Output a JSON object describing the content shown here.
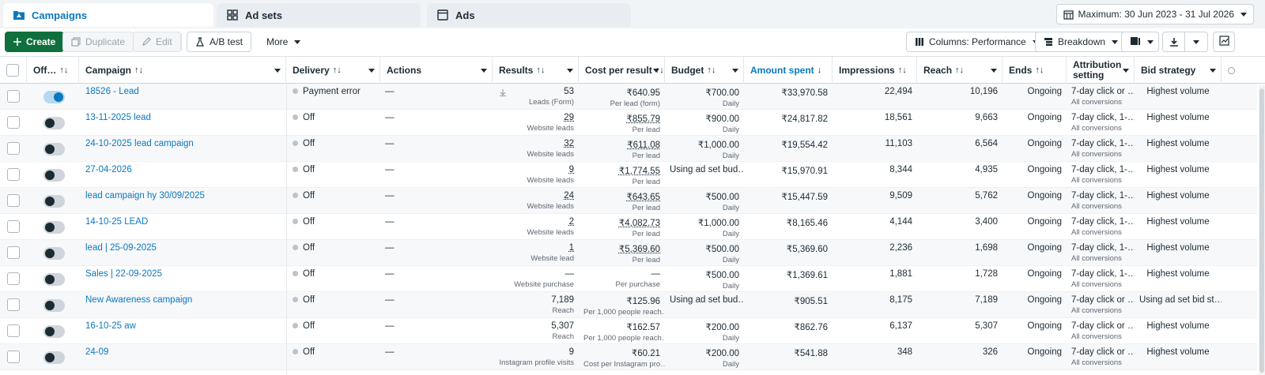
{
  "tabs": [
    {
      "label": "Campaigns",
      "icon": "folder-icon",
      "active": true
    },
    {
      "label": "Ad sets",
      "icon": "grid-icon",
      "active": false
    },
    {
      "label": "Ads",
      "icon": "ad-icon",
      "active": false
    }
  ],
  "date_range": "Maximum: 30 Jun 2023 - 31 Jul 2026",
  "toolbar": {
    "create": "Create",
    "duplicate": "Duplicate",
    "edit": "Edit",
    "ab_test": "A/B test",
    "more": "More",
    "columns": "Columns: Performance",
    "breakdown": "Breakdown"
  },
  "columns": {
    "off_on": "Off…",
    "campaign": "Campaign",
    "delivery": "Delivery",
    "actions": "Actions",
    "results": "Results",
    "cost_per_result": "Cost per result",
    "budget": "Budget",
    "amount_spent": "Amount spent",
    "impressions": "Impressions",
    "reach": "Reach",
    "ends": "Ends",
    "attribution_line1": "Attribution",
    "attribution_line2": "setting",
    "bid_strategy": "Bid strategy"
  },
  "rows": [
    {
      "on": true,
      "name": "18526 - Lead",
      "delivery": "Payment error",
      "actions": "—",
      "results": "53",
      "results_sub": "Leads (Form)",
      "cost": "₹640.95",
      "cost_sub": "Per lead (form)",
      "budget": "₹700.00",
      "budget_sub": "Daily",
      "spent": "₹33,970.58",
      "impressions": "22,494",
      "reach": "10,196",
      "ends": "Ongoing",
      "attr": "7-day click or …",
      "attr_sub": "All conversions",
      "bid": "Highest volume"
    },
    {
      "on": false,
      "name": "13-11-2025 lead",
      "delivery": "Off",
      "actions": "—",
      "results": "29",
      "results_sub": "Website leads",
      "cost": "₹855.79",
      "cost_sub": "Per lead",
      "budget": "₹900.00",
      "budget_sub": "Daily",
      "spent": "₹24,817.82",
      "impressions": "18,561",
      "reach": "9,663",
      "ends": "Ongoing",
      "attr": "7-day click, 1-…",
      "attr_sub": "All conversions",
      "bid": "Highest volume"
    },
    {
      "on": false,
      "name": "24-10-2025 lead campaign",
      "delivery": "Off",
      "actions": "—",
      "results": "32",
      "results_sub": "Website leads",
      "cost": "₹611.08",
      "cost_sub": "Per lead",
      "budget": "₹1,000.00",
      "budget_sub": "Daily",
      "spent": "₹19,554.42",
      "impressions": "11,103",
      "reach": "6,564",
      "ends": "Ongoing",
      "attr": "7-day click, 1-…",
      "attr_sub": "All conversions",
      "bid": "Highest volume"
    },
    {
      "on": false,
      "name": "27-04-2026",
      "delivery": "Off",
      "actions": "—",
      "results": "9",
      "results_sub": "Website leads",
      "cost": "₹1,774.55",
      "cost_sub": "Per lead",
      "budget": "Using ad set bud…",
      "budget_sub": "",
      "spent": "₹15,970.91",
      "impressions": "8,344",
      "reach": "4,935",
      "ends": "Ongoing",
      "attr": "7-day click, 1-…",
      "attr_sub": "All conversions",
      "bid": "Highest volume"
    },
    {
      "on": false,
      "name": "lead campaign hy 30/09/2025",
      "delivery": "Off",
      "actions": "—",
      "results": "24",
      "results_sub": "Website leads",
      "cost": "₹643.65",
      "cost_sub": "Per lead",
      "budget": "₹500.00",
      "budget_sub": "Daily",
      "spent": "₹15,447.59",
      "impressions": "9,509",
      "reach": "5,762",
      "ends": "Ongoing",
      "attr": "7-day click, 1-…",
      "attr_sub": "All conversions",
      "bid": "Highest volume"
    },
    {
      "on": false,
      "name": "14-10-25 LEAD",
      "delivery": "Off",
      "actions": "—",
      "results": "2",
      "results_sub": "Website leads",
      "cost": "₹4,082.73",
      "cost_sub": "Per lead",
      "budget": "₹1,000.00",
      "budget_sub": "Daily",
      "spent": "₹8,165.46",
      "impressions": "4,144",
      "reach": "3,400",
      "ends": "Ongoing",
      "attr": "7-day click, 1-…",
      "attr_sub": "All conversions",
      "bid": "Highest volume"
    },
    {
      "on": false,
      "name": "lead | 25-09-2025",
      "delivery": "Off",
      "actions": "—",
      "results": "1",
      "results_sub": "Website lead",
      "cost": "₹5,369.60",
      "cost_sub": "Per lead",
      "budget": "₹500.00",
      "budget_sub": "Daily",
      "spent": "₹5,369.60",
      "impressions": "2,236",
      "reach": "1,698",
      "ends": "Ongoing",
      "attr": "7-day click, 1-…",
      "attr_sub": "All conversions",
      "bid": "Highest volume"
    },
    {
      "on": false,
      "name": "Sales | 22-09-2025",
      "delivery": "Off",
      "actions": "—",
      "results": "—",
      "results_sub": "Website purchase",
      "cost": "—",
      "cost_sub": "Per purchase",
      "budget": "₹500.00",
      "budget_sub": "Daily",
      "spent": "₹1,369.61",
      "impressions": "1,881",
      "reach": "1,728",
      "ends": "Ongoing",
      "attr": "7-day click, 1-…",
      "attr_sub": "All conversions",
      "bid": "Highest volume"
    },
    {
      "on": false,
      "name": "New Awareness campaign",
      "delivery": "Off",
      "actions": "—",
      "results": "7,189",
      "results_sub": "Reach",
      "cost": "₹125.96",
      "cost_sub": "Per 1,000 people reach…",
      "budget": "Using ad set bud…",
      "budget_sub": "",
      "spent": "₹905.51",
      "impressions": "8,175",
      "reach": "7,189",
      "ends": "Ongoing",
      "attr": "7-day click or …",
      "attr_sub": "All conversions",
      "bid": "Using ad set bid st…"
    },
    {
      "on": false,
      "name": "16-10-25 aw",
      "delivery": "Off",
      "actions": "—",
      "results": "5,307",
      "results_sub": "Reach",
      "cost": "₹162.57",
      "cost_sub": "Per 1,000 people reach…",
      "budget": "₹200.00",
      "budget_sub": "Daily",
      "spent": "₹862.76",
      "impressions": "6,137",
      "reach": "5,307",
      "ends": "Ongoing",
      "attr": "7-day click or …",
      "attr_sub": "All conversions",
      "bid": "Highest volume"
    },
    {
      "on": false,
      "name": "24-09",
      "delivery": "Off",
      "actions": "—",
      "results": "9",
      "results_sub": "Instagram profile visits",
      "cost": "₹60.21",
      "cost_sub": "Cost per Instagram pro…",
      "budget": "₹200.00",
      "budget_sub": "Daily",
      "spent": "₹541.88",
      "impressions": "348",
      "reach": "326",
      "ends": "Ongoing",
      "attr": "7-day click or …",
      "attr_sub": "All conversions",
      "bid": "Highest volume"
    }
  ]
}
